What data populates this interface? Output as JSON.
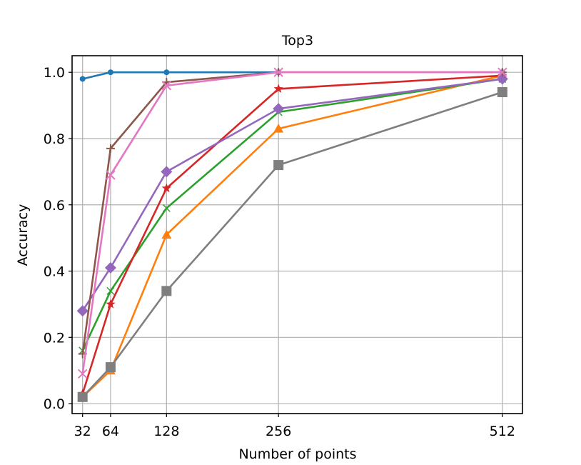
{
  "chart_data": {
    "type": "line",
    "title": "Top3",
    "xlabel": "Number of points",
    "ylabel": "Accuracy",
    "x": [
      32,
      64,
      128,
      256,
      512
    ],
    "x_tick_labels": [
      "32",
      "64",
      "128",
      "256",
      "512"
    ],
    "xlim": [
      20,
      535
    ],
    "ylim": [
      -0.03,
      1.05
    ],
    "y_ticks": [
      0.0,
      0.2,
      0.4,
      0.6,
      0.8,
      1.0
    ],
    "y_tick_labels": [
      "0.0",
      "0.2",
      "0.4",
      "0.6",
      "0.8",
      "1.0"
    ],
    "grid": true,
    "series": [
      {
        "color": "#1f77b4",
        "marker": "circle",
        "values": [
          0.98,
          1.0,
          1.0,
          1.0,
          1.0
        ]
      },
      {
        "color": "#ff7f0e",
        "marker": "triangle",
        "values": [
          0.02,
          0.1,
          0.51,
          0.83,
          0.99
        ]
      },
      {
        "color": "#2ca02c",
        "marker": "x-thin",
        "values": [
          0.16,
          0.34,
          0.59,
          0.88,
          0.98
        ]
      },
      {
        "color": "#d62728",
        "marker": "star",
        "values": [
          0.03,
          0.3,
          0.65,
          0.95,
          0.99
        ]
      },
      {
        "color": "#9467bd",
        "marker": "diamond",
        "values": [
          0.28,
          0.41,
          0.7,
          0.89,
          0.98
        ]
      },
      {
        "color": "#8c564b",
        "marker": "plus",
        "values": [
          0.15,
          0.77,
          0.97,
          1.0,
          1.0
        ]
      },
      {
        "color": "#e377c2",
        "marker": "x",
        "values": [
          0.09,
          0.69,
          0.96,
          1.0,
          1.0
        ]
      },
      {
        "color": "#7f7f7f",
        "marker": "square",
        "values": [
          0.02,
          0.11,
          0.34,
          0.72,
          0.94
        ]
      }
    ]
  }
}
